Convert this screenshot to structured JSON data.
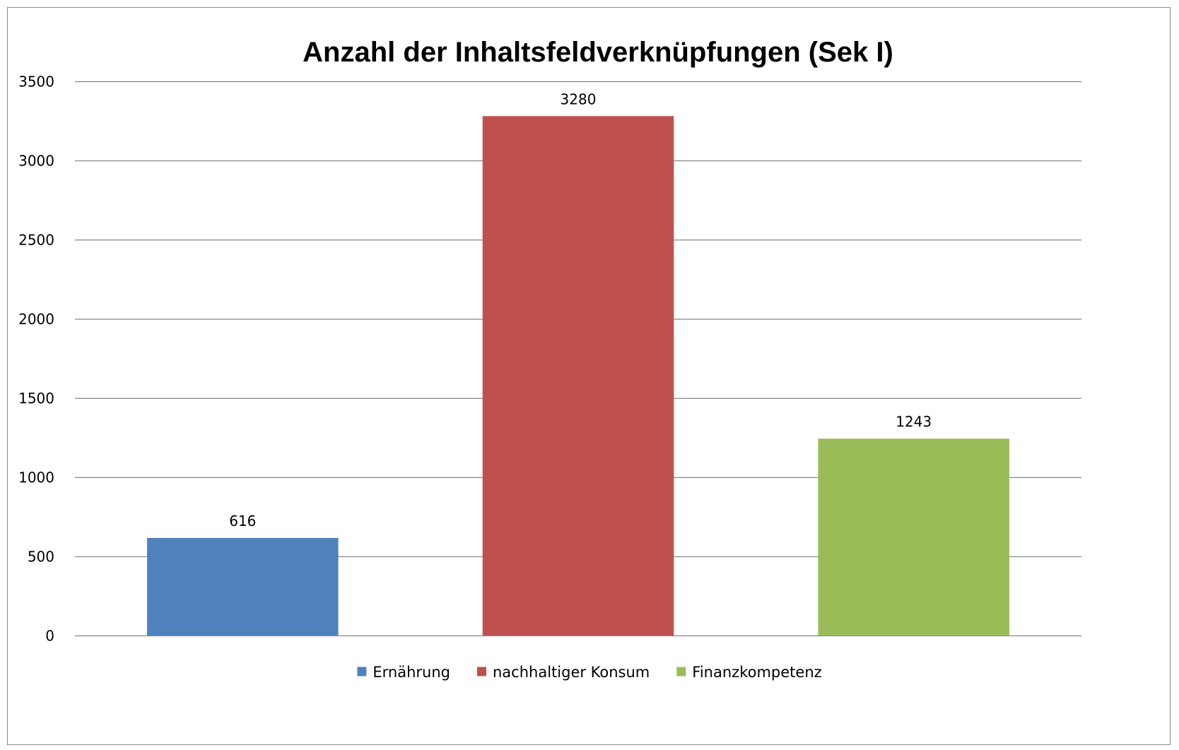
{
  "chart_data": {
    "type": "bar",
    "title": "Anzahl der Inhaltsfeldverknüpfungen (Sek I)",
    "categories": [
      "Ernährung",
      "nachhaltiger Konsum",
      "Finanzkompetenz"
    ],
    "values": [
      616,
      3280,
      1243
    ],
    "colors": [
      "#4f81bd",
      "#c0504d",
      "#9bbb59"
    ],
    "ylim": [
      0,
      3500
    ],
    "yticks": [
      0,
      500,
      1000,
      1500,
      2000,
      2500,
      3000,
      3500
    ],
    "grid": true,
    "data_labels": true,
    "legend": "bottom",
    "xlabel": "",
    "ylabel": ""
  }
}
